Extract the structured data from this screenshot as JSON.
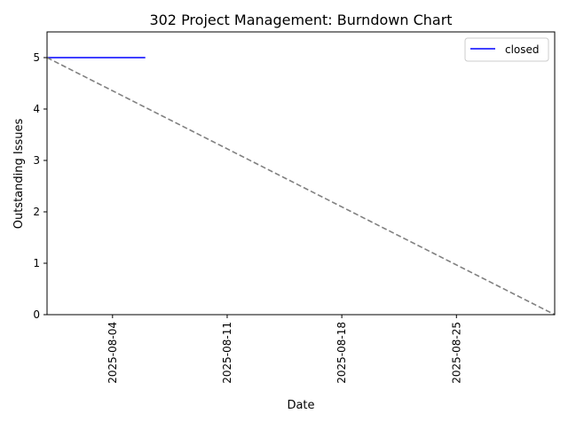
{
  "chart_data": {
    "type": "line",
    "title": "302 Project Management: Burndown Chart",
    "xlabel": "Date",
    "ylabel": "Outstanding Issues",
    "x_type": "date",
    "xlim": [
      "2025-07-31",
      "2025-08-31"
    ],
    "ylim": [
      0,
      5.5
    ],
    "x_ticks": [
      "2025-08-04",
      "2025-08-11",
      "2025-08-18",
      "2025-08-25"
    ],
    "y_ticks": [
      0,
      1,
      2,
      3,
      4,
      5
    ],
    "grid": false,
    "legend": {
      "placement": "top-right",
      "entries": [
        "closed"
      ]
    },
    "series": [
      {
        "name": "closed",
        "color": "#0000ff",
        "style": "solid",
        "points": [
          {
            "x": "2025-07-31",
            "y": 5
          },
          {
            "x": "2025-08-06",
            "y": 5
          }
        ]
      },
      {
        "color": "#808080",
        "style": "dashed",
        "points": [
          {
            "x": "2025-07-31",
            "y": 5
          },
          {
            "x": "2025-08-31",
            "y": 0
          }
        ]
      }
    ]
  }
}
